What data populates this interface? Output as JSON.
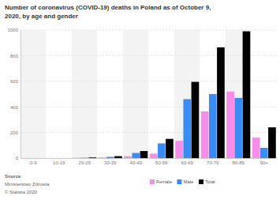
{
  "chart_data": {
    "type": "bar",
    "title": "Number of coronavirus (COVID-19) deaths in Poland as of October 9, 2020, by age and gender",
    "categories": [
      "0-9",
      "10-19",
      "20-29",
      "30-39",
      "40-49",
      "50-59",
      "60-69",
      "70-79",
      "80-89",
      "90+"
    ],
    "series": [
      {
        "name": "Female",
        "color": "#f58ee8",
        "values": [
          0,
          0,
          2,
          5,
          15,
          35,
          135,
          365,
          520,
          160
        ]
      },
      {
        "name": "Male",
        "color": "#3a8cf5",
        "values": [
          0,
          0,
          3,
          10,
          40,
          115,
          460,
          500,
          470,
          80
        ]
      },
      {
        "name": "Total",
        "color": "#000000",
        "values": [
          0,
          0,
          5,
          15,
          55,
          150,
          595,
          865,
          990,
          240
        ]
      }
    ],
    "ylim": [
      0,
      1000
    ],
    "yticks": [
      0,
      200,
      400,
      600,
      800,
      1000
    ],
    "grid": true,
    "legend": "bottom",
    "source_label": "Source",
    "source": "Ministerstwo Zdrowia",
    "copyright": "© Statista 2020"
  }
}
